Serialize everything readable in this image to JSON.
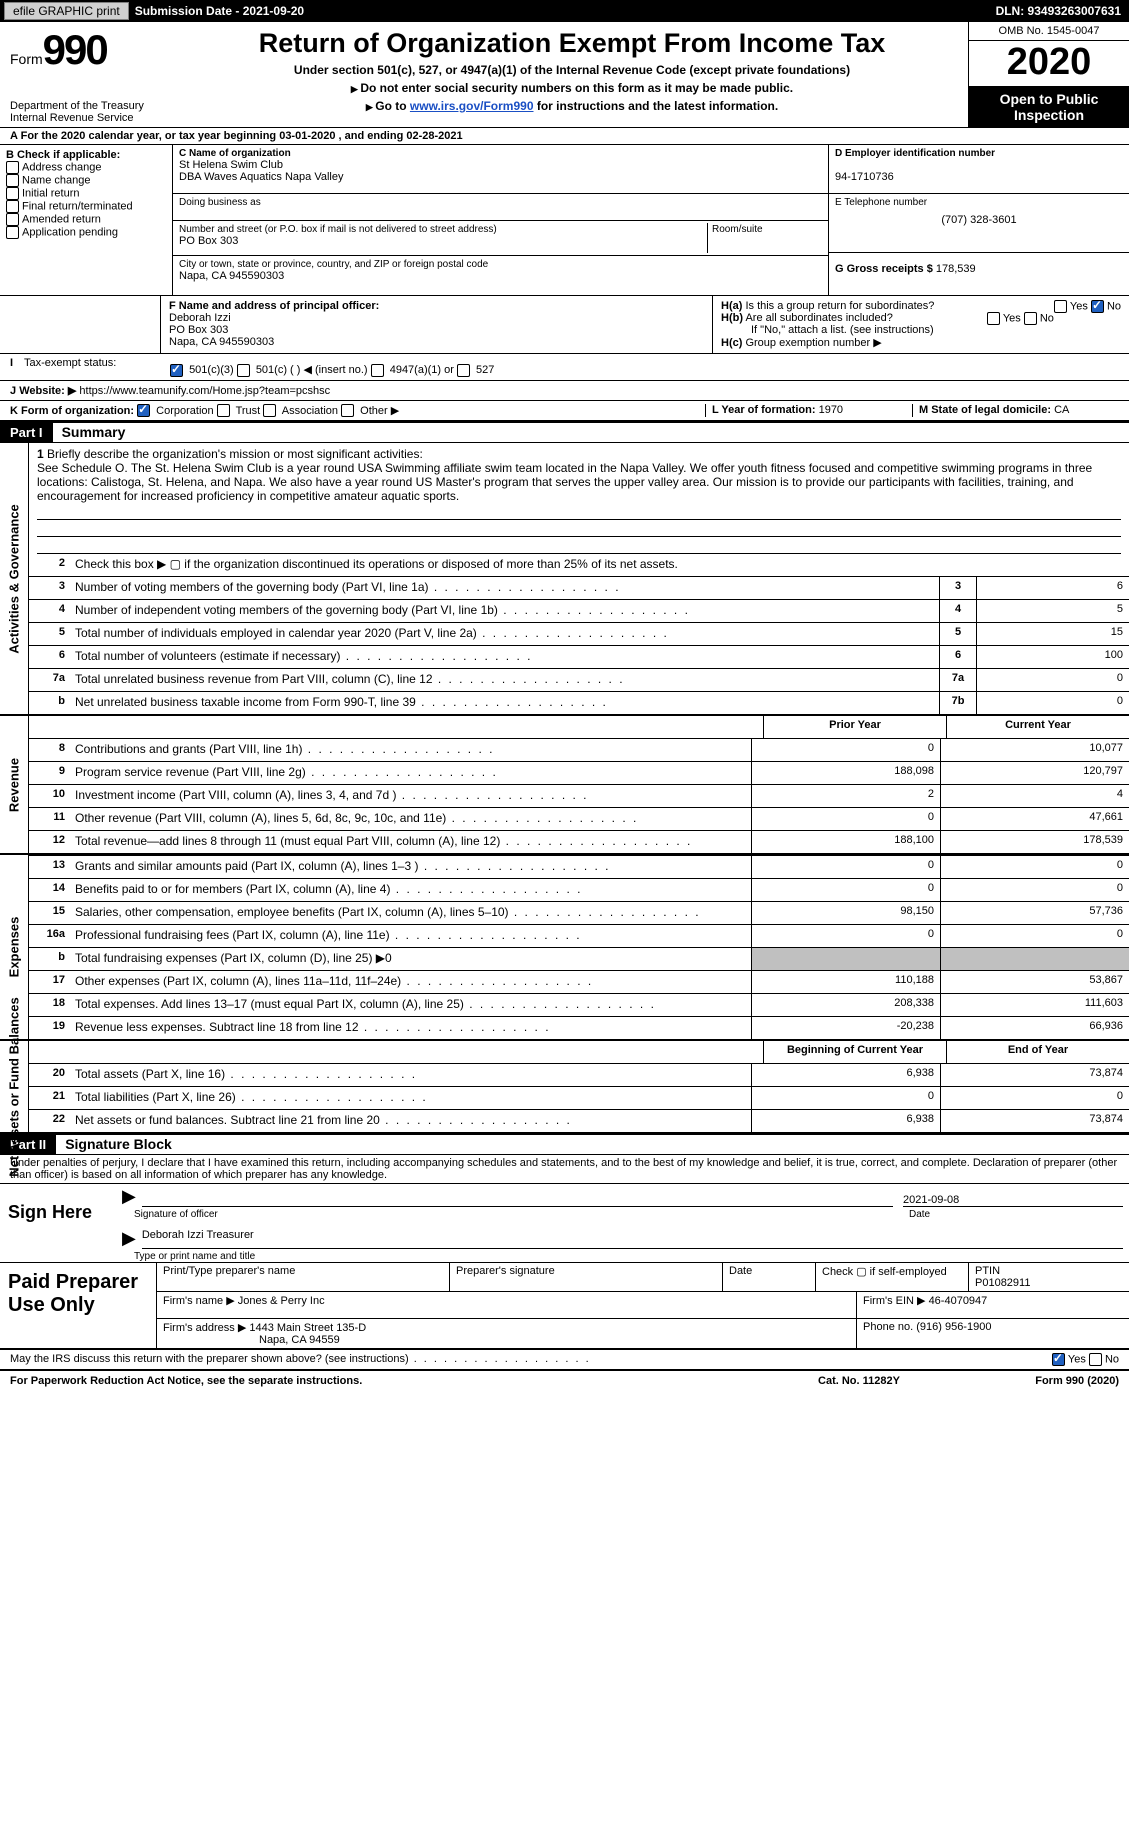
{
  "topbar": {
    "efile_btn": "efile GRAPHIC print",
    "submission": "Submission Date - 2021-09-20",
    "dln": "DLN: 93493263007631"
  },
  "header": {
    "form_label": "Form",
    "form_num": "990",
    "dept": "Department of the Treasury\nInternal Revenue Service",
    "title": "Return of Organization Exempt From Income Tax",
    "sub1": "Under section 501(c), 527, or 4947(a)(1) of the Internal Revenue Code (except private foundations)",
    "sub2": "Do not enter social security numbers on this form as it may be made public.",
    "sub3_pre": "Go to ",
    "sub3_link": "www.irs.gov/Form990",
    "sub3_post": " for instructions and the latest information.",
    "omb": "OMB No. 1545-0047",
    "year": "2020",
    "open": "Open to Public Inspection"
  },
  "row_a": "For the 2020 calendar year, or tax year beginning 03-01-2020   , and ending 02-28-2021",
  "b": {
    "title": "B Check if applicable:",
    "items": [
      "Address change",
      "Name change",
      "Initial return",
      "Final return/terminated",
      "Amended return",
      "Application pending"
    ]
  },
  "c": {
    "label": "C Name of organization",
    "name": "St Helena Swim Club",
    "dba": "DBA Waves Aquatics Napa Valley",
    "dba_label": "Doing business as",
    "addr_label": "Number and street (or P.O. box if mail is not delivered to street address)",
    "room": "Room/suite",
    "addr": "PO Box 303",
    "city_label": "City or town, state or province, country, and ZIP or foreign postal code",
    "city": "Napa, CA  945590303"
  },
  "d": {
    "label": "D Employer identification number",
    "val": "94-1710736"
  },
  "e": {
    "label": "E Telephone number",
    "val": "(707) 328-3601"
  },
  "g": {
    "label": "G Gross receipts $",
    "val": "178,539"
  },
  "f": {
    "label": "F  Name and address of principal officer:",
    "name": "Deborah Izzi",
    "addr1": "PO Box 303",
    "addr2": "Napa, CA  945590303"
  },
  "h": {
    "a": "Is this a group return for subordinates?",
    "b": "Are all subordinates included?",
    "note": "If \"No,\" attach a list. (see instructions)",
    "c": "Group exemption number ▶",
    "yes": "Yes",
    "no": "No"
  },
  "i": {
    "label": "Tax-exempt status:",
    "opts": [
      "501(c)(3)",
      "501(c) (   ) ◀ (insert no.)",
      "4947(a)(1) or",
      "527"
    ]
  },
  "j": {
    "label": "Website: ▶",
    "val": "https://www.teamunify.com/Home.jsp?team=pcshsc"
  },
  "k": {
    "label": "K Form of organization:",
    "opts": [
      "Corporation",
      "Trust",
      "Association",
      "Other ▶"
    ]
  },
  "l": {
    "label": "L Year of formation:",
    "val": "1970"
  },
  "m": {
    "label": "M State of legal domicile:",
    "val": "CA"
  },
  "parts": {
    "p1": "Part I",
    "p1_title": "Summary",
    "p2": "Part II",
    "p2_title": "Signature Block"
  },
  "tabs": {
    "ag": "Activities & Governance",
    "rev": "Revenue",
    "exp": "Expenses",
    "net": "Net Assets or Fund Balances"
  },
  "mission": {
    "label": "Briefly describe the organization's mission or most significant activities:",
    "text": "See Schedule O. The St. Helena Swim Club is a year round USA Swimming affiliate swim team located in the Napa Valley. We offer youth fitness focused and competitive swimming programs in three locations: Calistoga, St. Helena, and Napa. We also have a year round US Master's program that serves the upper valley area. Our mission is to provide our participants with facilities, training, and encouragement for increased proficiency in competitive amateur aquatic sports."
  },
  "lines_ag": [
    {
      "n": "2",
      "t": "Check this box ▶ ▢  if the organization discontinued its operations or disposed of more than 25% of its net assets."
    },
    {
      "n": "3",
      "t": "Number of voting members of the governing body (Part VI, line 1a)",
      "box": "3",
      "v": "6"
    },
    {
      "n": "4",
      "t": "Number of independent voting members of the governing body (Part VI, line 1b)",
      "box": "4",
      "v": "5"
    },
    {
      "n": "5",
      "t": "Total number of individuals employed in calendar year 2020 (Part V, line 2a)",
      "box": "5",
      "v": "15"
    },
    {
      "n": "6",
      "t": "Total number of volunteers (estimate if necessary)",
      "box": "6",
      "v": "100"
    },
    {
      "n": "7a",
      "t": "Total unrelated business revenue from Part VIII, column (C), line 12",
      "box": "7a",
      "v": "0"
    },
    {
      "n": "b",
      "t": "Net unrelated business taxable income from Form 990-T, line 39",
      "box": "7b",
      "v": "0"
    }
  ],
  "col_headers": {
    "prior": "Prior Year",
    "current": "Current Year",
    "begin": "Beginning of Current Year",
    "end": "End of Year"
  },
  "lines_rev": [
    {
      "n": "8",
      "t": "Contributions and grants (Part VIII, line 1h)",
      "p": "0",
      "c": "10,077"
    },
    {
      "n": "9",
      "t": "Program service revenue (Part VIII, line 2g)",
      "p": "188,098",
      "c": "120,797"
    },
    {
      "n": "10",
      "t": "Investment income (Part VIII, column (A), lines 3, 4, and 7d )",
      "p": "2",
      "c": "4"
    },
    {
      "n": "11",
      "t": "Other revenue (Part VIII, column (A), lines 5, 6d, 8c, 9c, 10c, and 11e)",
      "p": "0",
      "c": "47,661"
    },
    {
      "n": "12",
      "t": "Total revenue—add lines 8 through 11 (must equal Part VIII, column (A), line 12)",
      "p": "188,100",
      "c": "178,539"
    }
  ],
  "lines_exp": [
    {
      "n": "13",
      "t": "Grants and similar amounts paid (Part IX, column (A), lines 1–3 )",
      "p": "0",
      "c": "0"
    },
    {
      "n": "14",
      "t": "Benefits paid to or for members (Part IX, column (A), line 4)",
      "p": "0",
      "c": "0"
    },
    {
      "n": "15",
      "t": "Salaries, other compensation, employee benefits (Part IX, column (A), lines 5–10)",
      "p": "98,150",
      "c": "57,736"
    },
    {
      "n": "16a",
      "t": "Professional fundraising fees (Part IX, column (A), line 11e)",
      "p": "0",
      "c": "0"
    },
    {
      "n": "b",
      "t": "Total fundraising expenses (Part IX, column (D), line 25) ▶0",
      "gray": true
    },
    {
      "n": "17",
      "t": "Other expenses (Part IX, column (A), lines 11a–11d, 11f–24e)",
      "p": "110,188",
      "c": "53,867"
    },
    {
      "n": "18",
      "t": "Total expenses. Add lines 13–17 (must equal Part IX, column (A), line 25)",
      "p": "208,338",
      "c": "111,603"
    },
    {
      "n": "19",
      "t": "Revenue less expenses. Subtract line 18 from line 12",
      "p": "-20,238",
      "c": "66,936"
    }
  ],
  "lines_net": [
    {
      "n": "20",
      "t": "Total assets (Part X, line 16)",
      "p": "6,938",
      "c": "73,874"
    },
    {
      "n": "21",
      "t": "Total liabilities (Part X, line 26)",
      "p": "0",
      "c": "0"
    },
    {
      "n": "22",
      "t": "Net assets or fund balances. Subtract line 21 from line 20",
      "p": "6,938",
      "c": "73,874"
    }
  ],
  "sig": {
    "perjury": "Under penalties of perjury, I declare that I have examined this return, including accompanying schedules and statements, and to the best of my knowledge and belief, it is true, correct, and complete. Declaration of preparer (other than officer) is based on all information of which preparer has any knowledge.",
    "sign_here": "Sign Here",
    "sig_officer": "Signature of officer",
    "date": "Date",
    "sig_date": "2021-09-08",
    "name_title": "Deborah Izzi  Treasurer",
    "type_name": "Type or print name and title"
  },
  "prep": {
    "title": "Paid Preparer Use Only",
    "h1": "Print/Type preparer's name",
    "h2": "Preparer's signature",
    "h3": "Date",
    "h4a": "Check ▢ if self-employed",
    "h4b": "PTIN",
    "ptin": "P01082911",
    "firm_name_l": "Firm's name   ▶",
    "firm_name": "Jones & Perry Inc",
    "firm_ein_l": "Firm's EIN ▶",
    "firm_ein": "46-4070947",
    "firm_addr_l": "Firm's address ▶",
    "firm_addr1": "1443 Main Street 135-D",
    "firm_addr2": "Napa, CA  94559",
    "phone_l": "Phone no.",
    "phone": "(916) 956-1900"
  },
  "discuss": {
    "text": "May the IRS discuss this return with the preparer shown above? (see instructions)",
    "yes": "Yes",
    "no": "No"
  },
  "footer": {
    "left": "For Paperwork Reduction Act Notice, see the separate instructions.",
    "mid": "Cat. No. 11282Y",
    "right_a": "Form ",
    "right_b": "990",
    "right_c": " (2020)"
  }
}
